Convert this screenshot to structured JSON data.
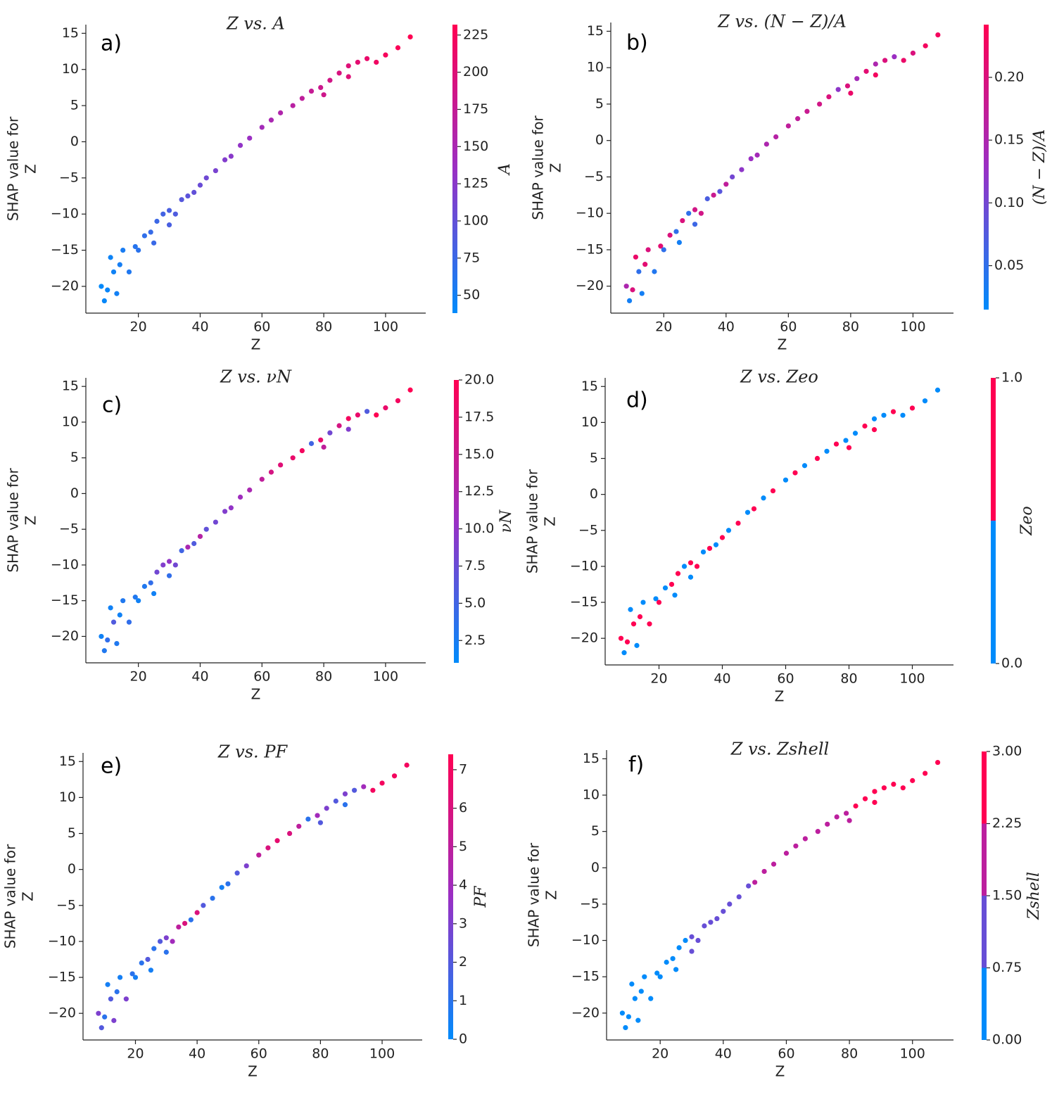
{
  "chart_data": [
    {
      "type": "scatter",
      "title": "Z vs. A",
      "panel_label": "a)",
      "xlabel": "Z",
      "ylabel": [
        "SHAP value for",
        "Z"
      ],
      "colorbar_label": "A",
      "x": [
        8,
        9,
        10,
        11,
        12,
        13,
        14,
        15,
        17,
        19,
        20,
        22,
        24,
        25,
        26,
        28,
        30,
        30,
        32,
        34,
        36,
        38,
        40,
        42,
        45,
        48,
        50,
        53,
        56,
        60,
        63,
        66,
        70,
        73,
        76,
        79,
        80,
        82,
        85,
        88,
        88,
        91,
        94,
        97,
        100,
        104,
        108
      ],
      "y": [
        -20,
        -22,
        -20.5,
        -16,
        -18,
        -21,
        -17,
        -15,
        -18,
        -14.5,
        -15,
        -13,
        -12.5,
        -14,
        -11,
        -10,
        -9.5,
        -11.5,
        -10,
        -8,
        -7.5,
        -7,
        -6,
        -5,
        -4,
        -2.5,
        -2,
        -0.5,
        0.5,
        2,
        3,
        4,
        5,
        6,
        7,
        7.5,
        6.5,
        8.5,
        9.5,
        10.5,
        9,
        11,
        11.5,
        11,
        12,
        13,
        14.5
      ],
      "c": [
        40,
        42,
        44,
        46,
        48,
        50,
        52,
        54,
        58,
        62,
        64,
        68,
        72,
        74,
        76,
        80,
        84,
        84,
        88,
        92,
        96,
        100,
        104,
        108,
        114,
        120,
        124,
        130,
        136,
        144,
        150,
        156,
        164,
        170,
        176,
        182,
        184,
        188,
        194,
        200,
        200,
        206,
        212,
        218,
        224,
        228,
        232
      ],
      "colormap": [
        "#008bfb",
        "#9a2fc4",
        "#ff0052"
      ],
      "clim": [
        38,
        232
      ],
      "cticks": [
        50,
        75,
        100,
        125,
        150,
        175,
        200,
        225
      ],
      "xlim": [
        3,
        113
      ],
      "ylim": [
        -23.7,
        16.2
      ],
      "xticks": [
        20,
        40,
        60,
        80,
        100
      ],
      "yticks": [
        {
          "value": -20,
          "label": "−20"
        },
        {
          "value": -15,
          "label": "−15"
        },
        {
          "value": -10,
          "label": "−10"
        },
        {
          "value": -5,
          "label": "−5"
        },
        0,
        5,
        10,
        15
      ]
    },
    {
      "type": "scatter",
      "title": "Z vs. (N − Z)/A",
      "panel_label": "b)",
      "xlabel": "Z",
      "ylabel": [
        "SHAP value for",
        "Z"
      ],
      "colorbar_label": "(N − Z)/A",
      "x": [
        8,
        9,
        10,
        11,
        12,
        13,
        14,
        15,
        17,
        19,
        20,
        22,
        24,
        25,
        26,
        28,
        30,
        30,
        32,
        34,
        36,
        38,
        40,
        42,
        45,
        48,
        50,
        53,
        56,
        60,
        63,
        66,
        70,
        73,
        76,
        79,
        80,
        82,
        85,
        88,
        88,
        91,
        94,
        97,
        100,
        104,
        108
      ],
      "y": [
        -20,
        -22,
        -20.5,
        -16,
        -18,
        -21,
        -17,
        -15,
        -18,
        -14.5,
        -15,
        -13,
        -12.5,
        -14,
        -11,
        -10,
        -9.5,
        -11.5,
        -10,
        -8,
        -7.5,
        -7,
        -6,
        -5,
        -4,
        -2.5,
        -2,
        -0.5,
        0.5,
        2,
        3,
        4,
        5,
        6,
        7,
        7.5,
        6.5,
        8.5,
        9.5,
        10.5,
        9,
        11,
        11.5,
        11,
        12,
        13,
        14.5
      ],
      "c": [
        0.15,
        0.03,
        0.2,
        0.22,
        0.05,
        0.03,
        0.21,
        0.2,
        0.04,
        0.21,
        0.05,
        0.2,
        0.05,
        0.03,
        0.2,
        0.05,
        0.19,
        0.06,
        0.19,
        0.07,
        0.18,
        0.08,
        0.17,
        0.1,
        0.12,
        0.13,
        0.14,
        0.15,
        0.16,
        0.17,
        0.17,
        0.18,
        0.19,
        0.2,
        0.12,
        0.2,
        0.22,
        0.14,
        0.21,
        0.15,
        0.23,
        0.2,
        0.13,
        0.22,
        0.2,
        0.23,
        0.23
      ],
      "colormap": [
        "#008bfb",
        "#9a2fc4",
        "#ff0052"
      ],
      "clim": [
        0.015,
        0.242
      ],
      "cticks": [
        0.05,
        {
          "value": 0.1,
          "label": "0.10"
        },
        0.15,
        {
          "value": 0.2,
          "label": "0.20"
        }
      ],
      "xlim": [
        3,
        113
      ],
      "ylim": [
        -23.7,
        16.2
      ],
      "xticks": [
        20,
        40,
        60,
        80,
        100
      ],
      "yticks": [
        {
          "value": -20,
          "label": "−20"
        },
        {
          "value": -15,
          "label": "−15"
        },
        {
          "value": -10,
          "label": "−10"
        },
        {
          "value": -5,
          "label": "−5"
        },
        0,
        5,
        10,
        15
      ]
    },
    {
      "type": "scatter",
      "title": "Z vs. νN",
      "panel_label": "c)",
      "xlabel": "Z",
      "ylabel": [
        "SHAP value for",
        "Z"
      ],
      "colorbar_label": "νN",
      "x": [
        8,
        9,
        10,
        11,
        12,
        13,
        14,
        15,
        17,
        19,
        20,
        22,
        24,
        25,
        26,
        28,
        30,
        30,
        32,
        34,
        36,
        38,
        40,
        42,
        45,
        48,
        50,
        53,
        56,
        60,
        63,
        66,
        70,
        73,
        76,
        79,
        80,
        82,
        85,
        88,
        88,
        91,
        94,
        97,
        100,
        104,
        108
      ],
      "y": [
        -20,
        -22,
        -20.5,
        -16,
        -18,
        -21,
        -17,
        -15,
        -18,
        -14.5,
        -15,
        -13,
        -12.5,
        -14,
        -11,
        -10,
        -9.5,
        -11.5,
        -10,
        -8,
        -7.5,
        -7,
        -6,
        -5,
        -4,
        -2.5,
        -2,
        -0.5,
        0.5,
        2,
        3,
        4,
        5,
        6,
        7,
        7.5,
        6.5,
        8.5,
        9.5,
        10.5,
        9,
        11,
        11.5,
        11,
        12,
        13,
        14.5
      ],
      "c": [
        2,
        3,
        4,
        2,
        6,
        3,
        2,
        3,
        4,
        3,
        2,
        3,
        4,
        2,
        8,
        9,
        10,
        4,
        8,
        5,
        12,
        6,
        13,
        7,
        8,
        9,
        10,
        11,
        12,
        14,
        16,
        17,
        18,
        19,
        5,
        18,
        14,
        8,
        16,
        19,
        9,
        18,
        6,
        20,
        18,
        19,
        20
      ],
      "colormap": [
        "#008bfb",
        "#9a2fc4",
        "#ff0052"
      ],
      "clim": [
        1,
        20
      ],
      "cticks": [
        2.5,
        {
          "value": 5,
          "label": "5.0"
        },
        7.5,
        {
          "value": 10,
          "label": "10.0"
        },
        12.5,
        {
          "value": 15,
          "label": "15.0"
        },
        17.5,
        {
          "value": 20,
          "label": "20.0"
        }
      ],
      "xlim": [
        3,
        113
      ],
      "ylim": [
        -23.7,
        16.2
      ],
      "xticks": [
        20,
        40,
        60,
        80,
        100
      ],
      "yticks": [
        {
          "value": -20,
          "label": "−20"
        },
        {
          "value": -15,
          "label": "−15"
        },
        {
          "value": -10,
          "label": "−10"
        },
        {
          "value": -5,
          "label": "−5"
        },
        0,
        5,
        10,
        15
      ]
    },
    {
      "type": "scatter",
      "title": "Z vs. Zeo",
      "panel_label": "d)",
      "xlabel": "Z",
      "ylabel": [
        "SHAP value for",
        "Z"
      ],
      "colorbar_label": "Zeo",
      "x": [
        8,
        9,
        10,
        11,
        12,
        13,
        14,
        15,
        17,
        19,
        20,
        22,
        24,
        25,
        26,
        28,
        30,
        30,
        32,
        34,
        36,
        38,
        40,
        42,
        45,
        48,
        50,
        53,
        56,
        60,
        63,
        66,
        70,
        73,
        76,
        79,
        80,
        82,
        85,
        88,
        88,
        91,
        94,
        97,
        100,
        104,
        108
      ],
      "y": [
        -20,
        -22,
        -20.5,
        -16,
        -18,
        -21,
        -17,
        -15,
        -18,
        -14.5,
        -15,
        -13,
        -12.5,
        -14,
        -11,
        -10,
        -9.5,
        -11.5,
        -10,
        -8,
        -7.5,
        -7,
        -6,
        -5,
        -4,
        -2.5,
        -2,
        -0.5,
        0.5,
        2,
        3,
        4,
        5,
        6,
        7,
        7.5,
        6.5,
        8.5,
        9.5,
        10.5,
        9,
        11,
        11.5,
        11,
        12,
        13,
        14.5
      ],
      "c": [
        1,
        0,
        1,
        0,
        1,
        0,
        1,
        0,
        1,
        0,
        1,
        0,
        1,
        0,
        1,
        0,
        1,
        0,
        1,
        0,
        1,
        0,
        1,
        0,
        1,
        0,
        1,
        0,
        1,
        0,
        1,
        0,
        1,
        0,
        1,
        0,
        1,
        0,
        1,
        0,
        1,
        0,
        1,
        0,
        1,
        0,
        0
      ],
      "colormap": [
        "#008bfb",
        "#9a2fc4",
        "#ff0052"
      ],
      "colorbar_steps": 2,
      "clim": [
        0,
        1
      ],
      "cticks": [
        {
          "value": 0,
          "label": "0.0"
        },
        {
          "value": 1,
          "label": "1.0"
        }
      ],
      "xlim": [
        3,
        113
      ],
      "ylim": [
        -23.7,
        16.2
      ],
      "xticks": [
        20,
        40,
        60,
        80,
        100
      ],
      "yticks": [
        {
          "value": -20,
          "label": "−20"
        },
        {
          "value": -15,
          "label": "−15"
        },
        {
          "value": -10,
          "label": "−10"
        },
        {
          "value": -5,
          "label": "−5"
        },
        0,
        5,
        10,
        15
      ]
    },
    {
      "type": "scatter",
      "title": "Z vs. PF",
      "panel_label": "e)",
      "xlabel": "Z",
      "ylabel": [
        "SHAP value for",
        "Z"
      ],
      "colorbar_label": "PF",
      "x": [
        8,
        9,
        10,
        11,
        12,
        13,
        14,
        15,
        17,
        19,
        20,
        22,
        24,
        25,
        26,
        28,
        30,
        30,
        32,
        34,
        36,
        38,
        40,
        42,
        45,
        48,
        50,
        53,
        56,
        60,
        63,
        66,
        70,
        73,
        76,
        79,
        80,
        82,
        85,
        88,
        88,
        91,
        94,
        97,
        100,
        104,
        108
      ],
      "y": [
        -20,
        -22,
        -20.5,
        -16,
        -18,
        -21,
        -17,
        -15,
        -18,
        -14.5,
        -15,
        -13,
        -12.5,
        -14,
        -11,
        -10,
        -9.5,
        -11.5,
        -10,
        -8,
        -7.5,
        -7,
        -6,
        -5,
        -4,
        -2.5,
        -2,
        -0.5,
        0.5,
        2,
        3,
        4,
        5,
        6,
        7,
        7.5,
        6.5,
        8.5,
        9.5,
        10.5,
        9,
        11,
        11.5,
        11,
        12,
        13,
        14.5
      ],
      "c": [
        3,
        2,
        1,
        0.5,
        2,
        3,
        1,
        0.5,
        3,
        1,
        0.5,
        1,
        2,
        0.5,
        1,
        2,
        3,
        1,
        4,
        5,
        6,
        1,
        6,
        2,
        1,
        0.5,
        1,
        2,
        3,
        5,
        6,
        6.5,
        6,
        5,
        1,
        4,
        2,
        3,
        2,
        3,
        1,
        2,
        4,
        7,
        7,
        7,
        7
      ],
      "colormap": [
        "#008bfb",
        "#9a2fc4",
        "#ff0052"
      ],
      "clim": [
        0,
        7.4
      ],
      "cticks": [
        0,
        1,
        2,
        3,
        4,
        5,
        6,
        7
      ],
      "xlim": [
        3,
        113
      ],
      "ylim": [
        -23.7,
        16.2
      ],
      "xticks": [
        20,
        40,
        60,
        80,
        100
      ],
      "yticks": [
        {
          "value": -20,
          "label": "−20"
        },
        {
          "value": -15,
          "label": "−15"
        },
        {
          "value": -10,
          "label": "−10"
        },
        {
          "value": -5,
          "label": "−5"
        },
        0,
        5,
        10,
        15
      ]
    },
    {
      "type": "scatter",
      "title": "Z vs. Zshell",
      "panel_label": "f)",
      "xlabel": "Z",
      "ylabel": [
        "SHAP value for",
        "Z"
      ],
      "colorbar_label": "Zshell",
      "x": [
        8,
        9,
        10,
        11,
        12,
        13,
        14,
        15,
        17,
        19,
        20,
        22,
        24,
        25,
        26,
        28,
        30,
        30,
        32,
        34,
        36,
        38,
        40,
        42,
        45,
        48,
        50,
        53,
        56,
        60,
        63,
        66,
        70,
        73,
        76,
        79,
        80,
        82,
        85,
        88,
        88,
        91,
        94,
        97,
        100,
        104,
        108
      ],
      "y": [
        -20,
        -22,
        -20.5,
        -16,
        -18,
        -21,
        -17,
        -15,
        -18,
        -14.5,
        -15,
        -13,
        -12.5,
        -14,
        -11,
        -10,
        -9.5,
        -11.5,
        -10,
        -8,
        -7.5,
        -7,
        -6,
        -5,
        -4,
        -2.5,
        -2,
        -0.5,
        0.5,
        2,
        3,
        4,
        5,
        6,
        7,
        7.5,
        6.5,
        8.5,
        9.5,
        10.5,
        9,
        11,
        11.5,
        11,
        12,
        13,
        14.5
      ],
      "c": [
        0,
        0,
        0,
        0,
        0,
        0,
        0,
        0,
        0,
        0,
        0,
        0,
        0,
        0,
        0,
        0,
        1,
        1,
        1,
        1,
        1,
        1,
        1,
        1,
        1,
        1,
        2,
        2,
        2,
        2,
        2,
        2,
        2,
        2,
        2,
        2,
        2,
        3,
        3,
        3,
        3,
        3,
        3,
        3,
        3,
        3,
        3
      ],
      "colormap": [
        "#008bfb",
        "#9a2fc4",
        "#ff0052"
      ],
      "colorbar_steps": 4,
      "clim": [
        0,
        3
      ],
      "cticks": [
        {
          "value": 0,
          "label": "0.00"
        },
        0.75,
        {
          "value": 1.5,
          "label": "1.50"
        },
        2.25,
        {
          "value": 3,
          "label": "3.00"
        }
      ],
      "xlim": [
        3,
        113
      ],
      "ylim": [
        -23.7,
        16.2
      ],
      "xticks": [
        20,
        40,
        60,
        80,
        100
      ],
      "yticks": [
        {
          "value": -20,
          "label": "−20"
        },
        {
          "value": -15,
          "label": "−15"
        },
        {
          "value": -10,
          "label": "−10"
        },
        {
          "value": -5,
          "label": "−5"
        },
        0,
        5,
        10,
        15
      ]
    }
  ]
}
